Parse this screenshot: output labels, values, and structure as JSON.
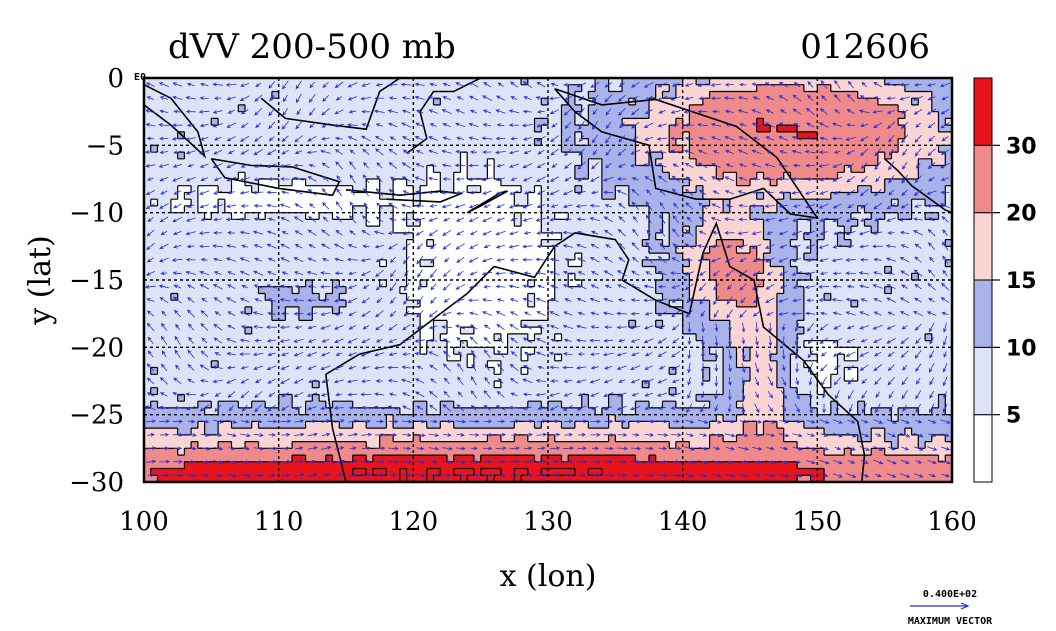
{
  "chart_data": {
    "type": "heatmap",
    "title": "dVV 200-500 mb",
    "subtitle": "012606",
    "xlabel": "x (lon)",
    "ylabel": "y (lat)",
    "xlim": [
      100,
      160
    ],
    "ylim": [
      -30,
      0
    ],
    "x_ticks": [
      "100",
      "110",
      "120",
      "130",
      "140",
      "150",
      "160"
    ],
    "y_ticks": [
      "0",
      "−5",
      "−10",
      "−15",
      "−20",
      "−25",
      "−30"
    ],
    "grid": true,
    "colorbar": {
      "levels": [
        0,
        5,
        10,
        15,
        20,
        30,
        40
      ],
      "labels": [
        "5",
        "10",
        "15",
        "20",
        "30"
      ],
      "colors": [
        "#ffffff",
        "#dfe3f8",
        "#aab2ea",
        "#fbd4d4",
        "#f08a8a",
        "#e8141c"
      ]
    },
    "vector_key": {
      "value": "0.400E+02",
      "label": "MAXIMUM VECTOR"
    },
    "corner_label": "E0",
    "contour_color": "#000000",
    "vector_color": "#1f2fd6"
  }
}
